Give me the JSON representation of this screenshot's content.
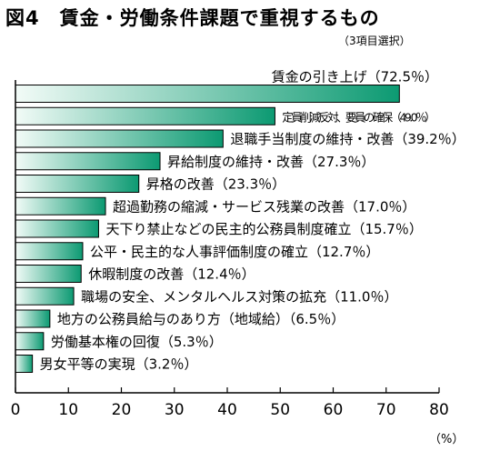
{
  "header": {
    "title": "図4　賃金・労働条件課題で重視するもの",
    "subtitle": "（3項目選択）"
  },
  "colors": {
    "bar_dark": "#0c9a72",
    "bar_light": "#f2fbf7",
    "bar_border": "#000000"
  },
  "chart_data": {
    "type": "bar",
    "orientation": "horizontal",
    "title": "図4　賃金・労働条件課題で重視するもの",
    "subtitle": "（3項目選択）",
    "unit_label": "（%）",
    "xlim": [
      0,
      80
    ],
    "xticks": [
      0,
      10,
      20,
      30,
      40,
      50,
      60,
      70,
      80
    ],
    "grid": false,
    "categories": [
      "賃金の引き上げ",
      "定員削減反対、要員の確保",
      "退職手当制度の維持・改善",
      "昇給制度の維持・改善",
      "昇格の改善",
      "超過勤務の縮減・サービス残業の改善",
      "天下り禁止などの民主的公務員制度確立",
      "公平・民主的な人事評価制度の確立",
      "休暇制度の改善",
      "職場の安全、メンタルヘルス対策の拡充",
      "地方の公務員給与のあり方（地域給）",
      "労働基本権の回復",
      "男女平等の実現"
    ],
    "values": [
      72.5,
      49.0,
      39.2,
      27.3,
      23.3,
      17.0,
      15.7,
      12.7,
      12.4,
      11.0,
      6.5,
      5.3,
      3.2
    ],
    "data_labels": [
      "賃金の引き上げ（72.5％）",
      "定員削減反対、要員の確保（49.0％）",
      "退職手当制度の維持・改善（39.2％）",
      "昇給制度の維持・改善（27.3％）",
      "昇格の改善（23.3％）",
      "超過勤務の縮減・サービス残業の改善（17.0％）",
      "天下り禁止などの民主的公務員制度確立（15.7％）",
      "公平・民主的な人事評価制度の確立（12.7％）",
      "休暇制度の改善（12.4％）",
      "職場の安全、メンタルヘルス対策の拡充（11.0％）",
      "地方の公務員給与のあり方（地域給）（6.5％）",
      "労働基本権の回復（5.3％）",
      "男女平等の実現（3.2％）"
    ]
  }
}
